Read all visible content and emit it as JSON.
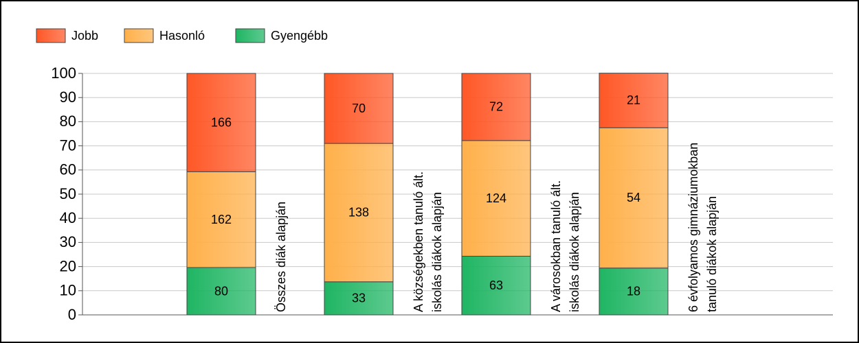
{
  "chart_data": {
    "type": "stacked_bar",
    "categories": [
      [
        "Összes diák alapján"
      ],
      [
        "A községekben tanuló ált.",
        "iskolás diákok alapján"
      ],
      [
        "A városokban tanuló ált.",
        "iskolás diákok alapján"
      ],
      [
        "6 évfolyamos gimnáziumokban",
        "tanuló diákok alapján"
      ]
    ],
    "series": [
      {
        "name": "Gyengébb",
        "color": "#1fb563",
        "values": [
          19.6,
          13.7,
          24.3,
          19.4
        ],
        "value_labels": [
          "80",
          "33",
          "63",
          "18"
        ]
      },
      {
        "name": "Hasonló",
        "color": "#ffb04a",
        "values": [
          39.7,
          57.3,
          47.9,
          58.1
        ],
        "value_labels": [
          "162",
          "138",
          "124",
          "54"
        ]
      },
      {
        "name": "Jobb",
        "color": "#ff5726",
        "values": [
          40.7,
          29.0,
          27.8,
          22.6
        ],
        "value_labels": [
          "166",
          "70",
          "72",
          "21"
        ]
      }
    ],
    "legend_order": [
      "Jobb",
      "Hasonló",
      "Gyengébb"
    ],
    "ylim": [
      0,
      100
    ],
    "yticks": [
      0,
      10,
      20,
      30,
      40,
      50,
      60,
      70,
      80,
      90,
      100
    ],
    "grid": true
  }
}
